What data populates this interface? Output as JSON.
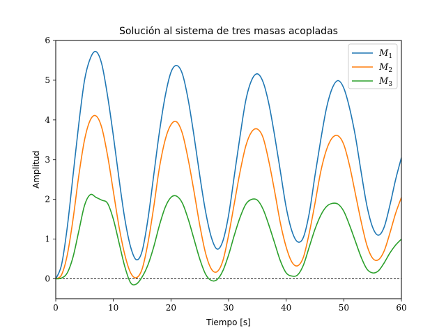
{
  "chart_data": {
    "type": "line",
    "title": "Solución al sistema de tres masas acopladas",
    "xlabel": "Tiempo [s]",
    "ylabel": "Amplitud",
    "xlim": [
      0,
      60
    ],
    "ylim": [
      -0.5,
      6
    ],
    "xticks": [
      "0",
      "10",
      "20",
      "30",
      "40",
      "50",
      "60"
    ],
    "yticks": [
      "0",
      "1",
      "2",
      "3",
      "4",
      "5",
      "6"
    ],
    "grid": false,
    "legend_position": "top-right",
    "reference_line": {
      "y": 0,
      "style": "dashed",
      "color": "#000000"
    },
    "series": [
      {
        "name": "M",
        "name_sub": "1",
        "color": "#1f77b4",
        "x": [
          0,
          1,
          2,
          3,
          4,
          5,
          6,
          7,
          8,
          9,
          10,
          11,
          12,
          13,
          14,
          15,
          16,
          17,
          18,
          19,
          20,
          21,
          22,
          23,
          24,
          25,
          26,
          27,
          28,
          29,
          30,
          31,
          32,
          33,
          34,
          35,
          36,
          37,
          38,
          39,
          40,
          41,
          42,
          43,
          44,
          45,
          46,
          47,
          48,
          49,
          50,
          51,
          52,
          53,
          54,
          55,
          56,
          57,
          58,
          59,
          60
        ],
        "y": [
          0,
          0.35,
          1.3,
          2.6,
          3.9,
          5.0,
          5.55,
          5.72,
          5.4,
          4.6,
          3.6,
          2.5,
          1.5,
          0.8,
          0.48,
          0.7,
          1.5,
          2.6,
          3.7,
          4.6,
          5.2,
          5.37,
          5.15,
          4.5,
          3.6,
          2.6,
          1.7,
          1.05,
          0.75,
          0.95,
          1.6,
          2.6,
          3.6,
          4.5,
          5.0,
          5.16,
          4.95,
          4.4,
          3.6,
          2.7,
          1.8,
          1.2,
          0.93,
          1.05,
          1.65,
          2.6,
          3.5,
          4.3,
          4.8,
          4.99,
          4.8,
          4.3,
          3.6,
          2.7,
          1.85,
          1.3,
          1.1,
          1.3,
          1.85,
          2.5,
          3.05
        ]
      },
      {
        "name": "M",
        "name_sub": "2",
        "color": "#ff7f0e",
        "x": [
          0,
          1,
          2,
          3,
          4,
          5,
          6,
          7,
          8,
          9,
          10,
          11,
          12,
          13,
          14,
          15,
          16,
          17,
          18,
          19,
          20,
          21,
          22,
          23,
          24,
          25,
          26,
          27,
          28,
          29,
          30,
          31,
          32,
          33,
          34,
          35,
          36,
          37,
          38,
          39,
          40,
          41,
          42,
          43,
          44,
          45,
          46,
          47,
          48,
          49,
          50,
          51,
          52,
          53,
          54,
          55,
          56,
          57,
          58,
          59,
          60
        ],
        "y": [
          0,
          0.1,
          0.6,
          1.5,
          2.6,
          3.5,
          4.0,
          4.1,
          3.8,
          3.1,
          2.2,
          1.3,
          0.6,
          0.15,
          0.03,
          0.25,
          0.9,
          1.8,
          2.8,
          3.5,
          3.88,
          3.95,
          3.65,
          3.0,
          2.2,
          1.35,
          0.65,
          0.25,
          0.18,
          0.45,
          1.1,
          1.9,
          2.7,
          3.35,
          3.7,
          3.77,
          3.55,
          2.95,
          2.2,
          1.4,
          0.8,
          0.42,
          0.33,
          0.55,
          1.15,
          1.9,
          2.7,
          3.25,
          3.55,
          3.6,
          3.38,
          2.85,
          2.15,
          1.45,
          0.85,
          0.52,
          0.48,
          0.7,
          1.15,
          1.65,
          2.05
        ]
      },
      {
        "name": "M",
        "name_sub": "3",
        "color": "#2ca02c",
        "x": [
          0,
          1,
          2,
          3,
          4,
          5,
          6,
          7,
          8,
          9,
          10,
          11,
          12,
          13,
          14,
          15,
          16,
          17,
          18,
          19,
          20,
          21,
          22,
          23,
          24,
          25,
          26,
          27,
          28,
          29,
          30,
          31,
          32,
          33,
          34,
          35,
          36,
          37,
          38,
          39,
          40,
          41,
          42,
          43,
          44,
          45,
          46,
          47,
          48,
          49,
          50,
          51,
          52,
          53,
          54,
          55,
          56,
          57,
          58,
          59,
          60
        ],
        "y": [
          0,
          0.02,
          0.15,
          0.55,
          1.2,
          1.85,
          2.12,
          2.05,
          1.98,
          1.9,
          1.5,
          0.9,
          0.3,
          -0.1,
          -0.13,
          0.05,
          0.35,
          0.8,
          1.35,
          1.8,
          2.05,
          2.08,
          1.9,
          1.5,
          1.0,
          0.5,
          0.12,
          -0.04,
          -0.02,
          0.2,
          0.6,
          1.1,
          1.55,
          1.88,
          2.0,
          1.98,
          1.75,
          1.35,
          0.9,
          0.45,
          0.15,
          0.07,
          0.1,
          0.35,
          0.8,
          1.25,
          1.6,
          1.82,
          1.9,
          1.88,
          1.7,
          1.35,
          0.95,
          0.55,
          0.25,
          0.15,
          0.2,
          0.4,
          0.65,
          0.85,
          1.0
        ]
      }
    ]
  }
}
